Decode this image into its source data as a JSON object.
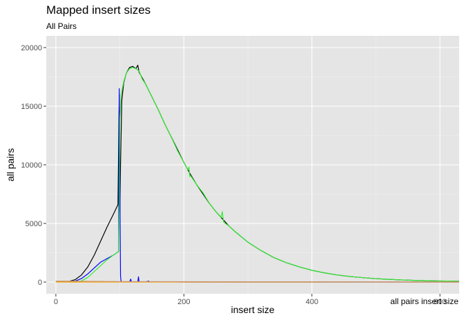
{
  "chart_data": {
    "type": "line",
    "title": "Mapped insert sizes",
    "subtitle": "All Pairs",
    "caption": "all pairs insert size",
    "xlabel": "insert size",
    "ylabel": "all pairs",
    "xlim": [
      -15,
      630
    ],
    "ylim": [
      -1000,
      21000
    ],
    "x_ticks": [
      0,
      200,
      400,
      600
    ],
    "y_ticks": [
      0,
      5000,
      10000,
      15000,
      20000
    ],
    "x_tick_labels": [
      "0",
      "200",
      "400",
      "600"
    ],
    "y_tick_labels": [
      "0",
      "5000",
      "10000",
      "15000",
      "20000"
    ],
    "grid": true,
    "series": [
      {
        "color": "#000000",
        "points": [
          [
            0,
            50
          ],
          [
            10,
            20
          ],
          [
            20,
            50
          ],
          [
            30,
            200
          ],
          [
            40,
            600
          ],
          [
            50,
            1300
          ],
          [
            60,
            2300
          ],
          [
            70,
            3500
          ],
          [
            80,
            4700
          ],
          [
            90,
            5800
          ],
          [
            97,
            6600
          ],
          [
            99,
            16000
          ],
          [
            100,
            6000
          ],
          [
            101,
            10000
          ],
          [
            103,
            15500
          ],
          [
            106,
            17000
          ],
          [
            110,
            17800
          ],
          [
            115,
            18300
          ],
          [
            120,
            18400
          ],
          [
            125,
            18200
          ],
          [
            128,
            18500
          ],
          [
            130,
            17900
          ],
          [
            135,
            17400
          ],
          [
            140,
            16900
          ],
          [
            150,
            15800
          ],
          [
            160,
            14700
          ],
          [
            170,
            13500
          ],
          [
            180,
            12400
          ],
          [
            190,
            11300
          ],
          [
            200,
            10200
          ],
          [
            210,
            9200
          ],
          [
            220,
            8300
          ],
          [
            230,
            7500
          ],
          [
            240,
            6700
          ],
          [
            250,
            6000
          ],
          [
            260,
            5400
          ],
          [
            270,
            4800
          ],
          [
            280,
            4300
          ],
          [
            300,
            3400
          ],
          [
            320,
            2700
          ],
          [
            340,
            2100
          ],
          [
            360,
            1650
          ],
          [
            380,
            1300
          ],
          [
            400,
            1000
          ],
          [
            420,
            780
          ],
          [
            440,
            600
          ],
          [
            460,
            470
          ],
          [
            480,
            370
          ],
          [
            500,
            290
          ],
          [
            520,
            230
          ],
          [
            540,
            180
          ],
          [
            560,
            140
          ],
          [
            580,
            110
          ],
          [
            600,
            90
          ],
          [
            630,
            70
          ]
        ]
      },
      {
        "color": "#0000ff",
        "points": [
          [
            0,
            20
          ],
          [
            10,
            10
          ],
          [
            20,
            20
          ],
          [
            30,
            80
          ],
          [
            40,
            300
          ],
          [
            50,
            700
          ],
          [
            60,
            1200
          ],
          [
            70,
            1700
          ],
          [
            80,
            2000
          ],
          [
            90,
            2300
          ],
          [
            98,
            2600
          ],
          [
            99,
            16500
          ],
          [
            100,
            8000
          ],
          [
            101,
            500
          ],
          [
            102,
            10
          ],
          [
            115,
            10
          ],
          [
            117,
            250
          ],
          [
            118,
            10
          ],
          [
            128,
            10
          ],
          [
            129,
            450
          ],
          [
            130,
            10
          ],
          [
            140,
            10
          ],
          [
            145,
            80
          ],
          [
            146,
            10
          ],
          [
            200,
            0
          ],
          [
            630,
            0
          ]
        ]
      },
      {
        "color": "#33ee33",
        "points": [
          [
            0,
            20
          ],
          [
            10,
            10
          ],
          [
            20,
            10
          ],
          [
            30,
            20
          ],
          [
            40,
            100
          ],
          [
            50,
            400
          ],
          [
            60,
            900
          ],
          [
            70,
            1400
          ],
          [
            80,
            1900
          ],
          [
            90,
            2300
          ],
          [
            98,
            2600
          ],
          [
            99,
            6000
          ],
          [
            100,
            14000
          ],
          [
            102,
            16000
          ],
          [
            106,
            17100
          ],
          [
            110,
            17800
          ],
          [
            115,
            18200
          ],
          [
            120,
            18300
          ],
          [
            125,
            18200
          ],
          [
            130,
            18000
          ],
          [
            135,
            17300
          ],
          [
            140,
            16900
          ],
          [
            150,
            15800
          ],
          [
            160,
            14700
          ],
          [
            170,
            13500
          ],
          [
            180,
            12400
          ],
          [
            190,
            11200
          ],
          [
            200,
            10200
          ],
          [
            206,
            9600
          ],
          [
            208,
            9800
          ],
          [
            209,
            9000
          ],
          [
            210,
            9100
          ],
          [
            220,
            8300
          ],
          [
            230,
            7600
          ],
          [
            240,
            6700
          ],
          [
            250,
            6000
          ],
          [
            258,
            5500
          ],
          [
            260,
            6000
          ],
          [
            262,
            5100
          ],
          [
            270,
            4800
          ],
          [
            280,
            4300
          ],
          [
            300,
            3400
          ],
          [
            320,
            2700
          ],
          [
            340,
            2100
          ],
          [
            360,
            1650
          ],
          [
            380,
            1300
          ],
          [
            400,
            1000
          ],
          [
            420,
            780
          ],
          [
            440,
            600
          ],
          [
            460,
            470
          ],
          [
            480,
            370
          ],
          [
            500,
            290
          ],
          [
            520,
            230
          ],
          [
            540,
            180
          ],
          [
            560,
            140
          ],
          [
            580,
            110
          ],
          [
            600,
            90
          ],
          [
            630,
            70
          ]
        ]
      },
      {
        "color": "#ffa500",
        "points": [
          [
            0,
            0
          ],
          [
            630,
            0
          ]
        ]
      },
      {
        "color": "#c89670",
        "points": [
          [
            0,
            80
          ],
          [
            50,
            60
          ],
          [
            100,
            40
          ],
          [
            200,
            30
          ],
          [
            300,
            20
          ],
          [
            400,
            20
          ],
          [
            500,
            10
          ],
          [
            630,
            10
          ]
        ]
      }
    ]
  }
}
